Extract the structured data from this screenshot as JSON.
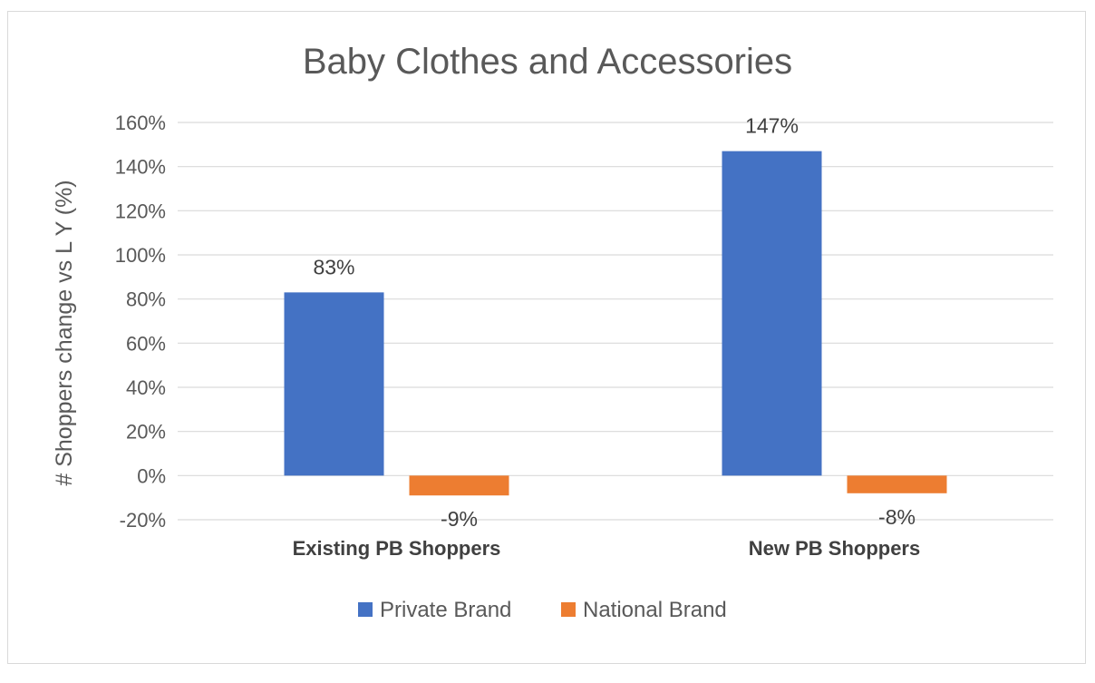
{
  "chart_data": {
    "type": "bar",
    "title": "Baby Clothes and Accessories",
    "ylabel": "# Shoppers change vs L Y (%)",
    "xlabel": "",
    "categories": [
      "Existing PB Shoppers",
      "New PB Shoppers"
    ],
    "series": [
      {
        "name": "Private Brand",
        "values": [
          83,
          147
        ],
        "labels": [
          "83%",
          "147%"
        ],
        "color": "#4472C4"
      },
      {
        "name": "National Brand",
        "values": [
          -9,
          -8
        ],
        "labels": [
          "-9%",
          "-8%"
        ],
        "color": "#ED7D31"
      }
    ],
    "ylim": [
      -20,
      160
    ],
    "yticks": [
      160,
      140,
      120,
      100,
      80,
      60,
      40,
      20,
      0,
      -20
    ],
    "ytick_labels": [
      "160%",
      "140%",
      "120%",
      "100%",
      "80%",
      "60%",
      "40%",
      "20%",
      "0%",
      "-20%"
    ],
    "grid": true,
    "legend_position": "bottom"
  }
}
